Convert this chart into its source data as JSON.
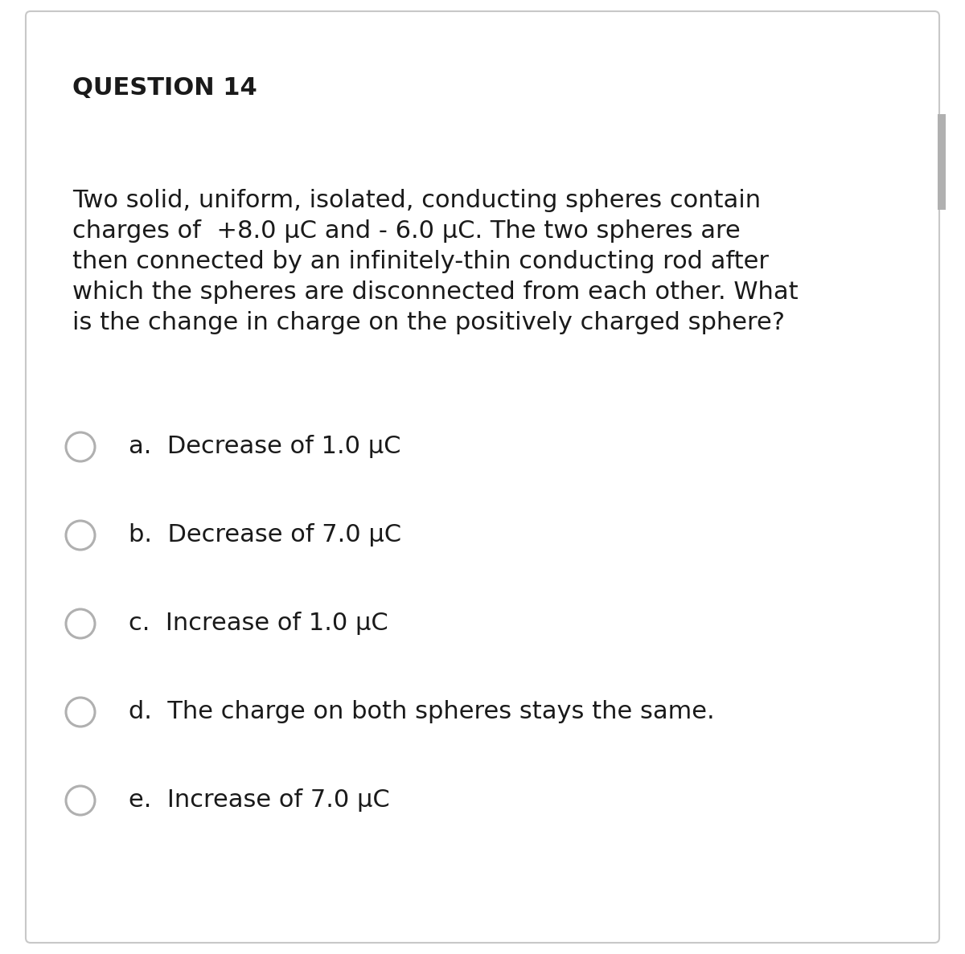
{
  "title": "QUESTION 14",
  "question_lines": [
    "Two solid, uniform, isolated, conducting spheres contain",
    "charges of  +8.0 μC and - 6.0 μC. The two spheres are",
    "then connected by an infinitely-thin conducting rod after",
    "which the spheres are disconnected from each other. What",
    "is the change in charge on the positively charged sphere?"
  ],
  "options": [
    "a.  Decrease of 1.0 μC",
    "b.  Decrease of 7.0 μC",
    "c.  Increase of 1.0 μC",
    "d.  The charge on both spheres stays the same.",
    "e.  Increase of 7.0 μC"
  ],
  "background_color": "#ffffff",
  "text_color": "#1a1a1a",
  "circle_edge_color": "#b0b0b0",
  "title_fontsize": 22,
  "question_fontsize": 22,
  "option_fontsize": 22,
  "border_color": "#c8c8c8",
  "scrollbar_color": "#b0b0b0",
  "fig_width": 12.0,
  "fig_height": 11.87,
  "dpi": 100
}
